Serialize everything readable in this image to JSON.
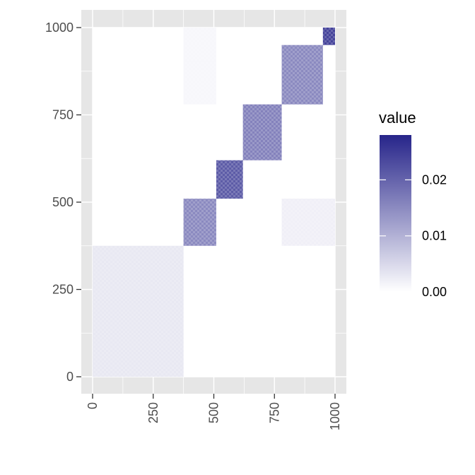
{
  "chart_data": {
    "type": "heatmap",
    "title": "",
    "xlabel": "",
    "ylabel": "",
    "x_range": [
      0,
      1000
    ],
    "y_range": [
      0,
      1000
    ],
    "x_ticks": [
      0,
      250,
      500,
      750,
      1000
    ],
    "y_ticks": [
      0,
      250,
      500,
      750,
      1000
    ],
    "x_tick_labels": [
      "0",
      "250",
      "500",
      "750",
      "1000"
    ],
    "y_tick_labels": [
      "0",
      "250",
      "500",
      "750",
      "1000"
    ],
    "grid": true,
    "low_color": "#ffffff",
    "high_color": "#27258a",
    "panel_color": "#e6e6e6",
    "blocks": [
      {
        "x": [
          0,
          375
        ],
        "y": [
          0,
          375
        ],
        "value": 0.003
      },
      {
        "x": [
          375,
          510
        ],
        "y": [
          375,
          510
        ],
        "value": 0.015
      },
      {
        "x": [
          510,
          620
        ],
        "y": [
          510,
          620
        ],
        "value": 0.021
      },
      {
        "x": [
          620,
          780
        ],
        "y": [
          620,
          780
        ],
        "value": 0.016
      },
      {
        "x": [
          780,
          950
        ],
        "y": [
          780,
          950
        ],
        "value": 0.015
      },
      {
        "x": [
          950,
          1000
        ],
        "y": [
          950,
          1000
        ],
        "value": 0.024
      },
      {
        "x": [
          375,
          510
        ],
        "y": [
          780,
          1000
        ],
        "value": 0.001
      },
      {
        "x": [
          780,
          1000
        ],
        "y": [
          375,
          510
        ],
        "value": 0.002
      }
    ],
    "legend": {
      "title": "value",
      "position": "right",
      "min": 0,
      "max": 0.028,
      "ticks": [
        0.0,
        0.01,
        0.02
      ],
      "tick_labels": [
        "0.00",
        "0.01",
        "0.02"
      ]
    }
  }
}
